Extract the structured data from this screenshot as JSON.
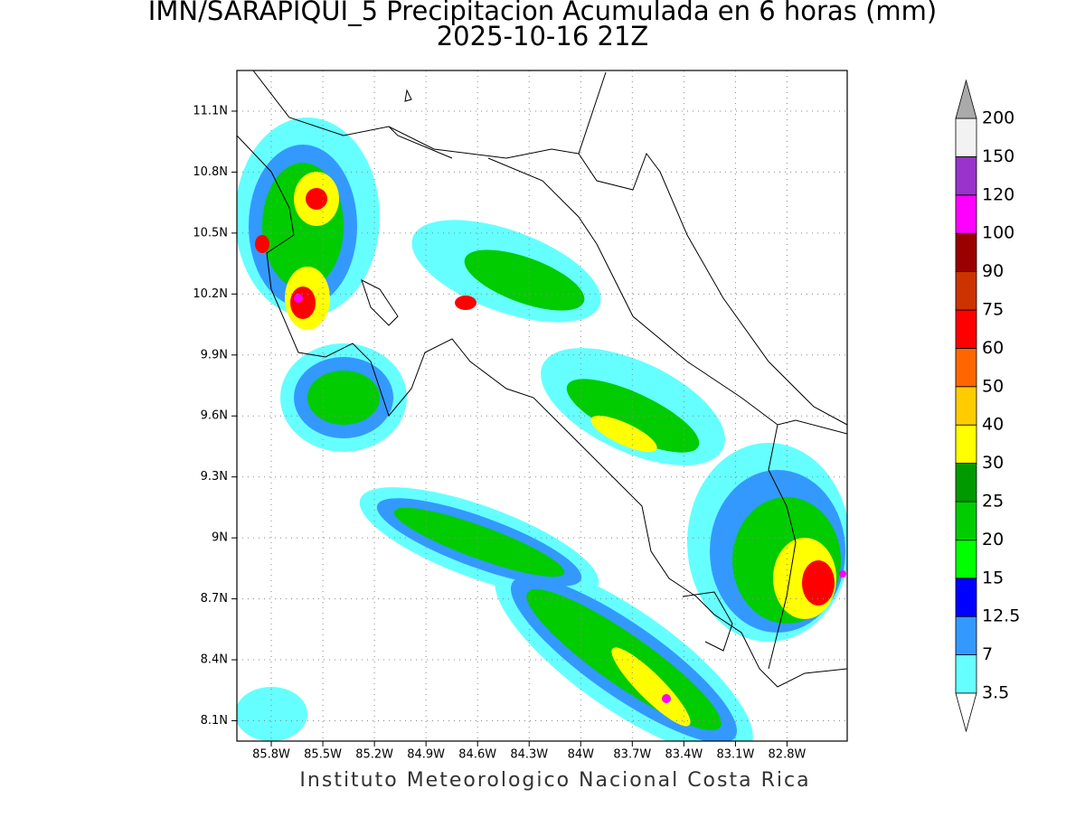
{
  "map": {
    "title": "IMN/SARAPIQUI_5 Precipitacion Acumulada en 6 horas (mm)",
    "subtitle": "2025-10-16 21Z",
    "footer": "Instituto Meteorologico Nacional Costa Rica",
    "xlim": [
      -86.0,
      -82.45
    ],
    "ylim": [
      8.0,
      11.3
    ],
    "lon_ticks": [
      {
        "value": -85.8,
        "label": "85.8W"
      },
      {
        "value": -85.5,
        "label": "85.5W"
      },
      {
        "value": -85.2,
        "label": "85.2W"
      },
      {
        "value": -84.9,
        "label": "84.9W"
      },
      {
        "value": -84.6,
        "label": "84.6W"
      },
      {
        "value": -84.3,
        "label": "84.3W"
      },
      {
        "value": -84.0,
        "label": "84W"
      },
      {
        "value": -83.7,
        "label": "83.7W"
      },
      {
        "value": -83.4,
        "label": "83.4W"
      },
      {
        "value": -83.1,
        "label": "83.1W"
      },
      {
        "value": -82.8,
        "label": "82.8W"
      }
    ],
    "lat_ticks": [
      {
        "value": 11.1,
        "label": "11.1N"
      },
      {
        "value": 10.8,
        "label": "10.8N"
      },
      {
        "value": 10.5,
        "label": "10.5N"
      },
      {
        "value": 10.2,
        "label": "10.2N"
      },
      {
        "value": 9.9,
        "label": "9.9N"
      },
      {
        "value": 9.6,
        "label": "9.6N"
      },
      {
        "value": 9.3,
        "label": "9.3N"
      },
      {
        "value": 9.0,
        "label": "9N"
      },
      {
        "value": 8.7,
        "label": "8.7N"
      },
      {
        "value": 8.4,
        "label": "8.4N"
      },
      {
        "value": 8.1,
        "label": "8.1N"
      }
    ],
    "grid": true,
    "colorbar": {
      "levels": [
        3.5,
        7,
        12.5,
        15,
        20,
        25,
        30,
        40,
        50,
        60,
        75,
        90,
        100,
        120,
        150,
        200
      ],
      "colors": [
        "#66ffff",
        "#3399ff",
        "#0000ff",
        "#00ff00",
        "#00cc00",
        "#009900",
        "#ffff00",
        "#ffcc00",
        "#ff6600",
        "#ff0000",
        "#cc3300",
        "#990000",
        "#ff00ff",
        "#9933cc",
        "#f2f2f2"
      ],
      "under_color": "#ffffff",
      "over_color": "#aaaaaa"
    }
  }
}
